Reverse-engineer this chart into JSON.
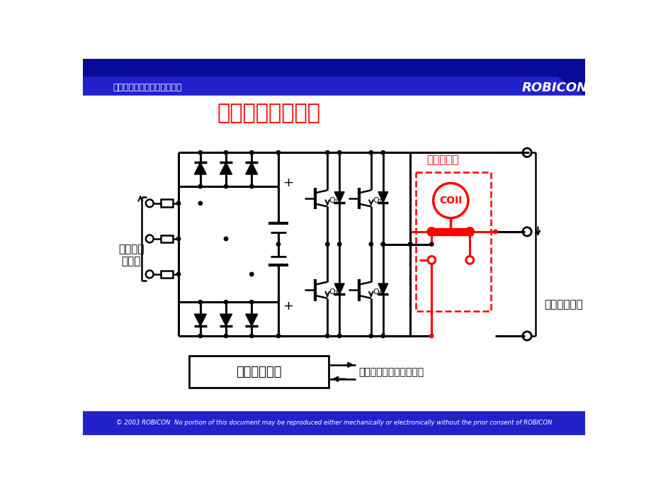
{
  "title": "功率单元旁路电路",
  "header_text": "罗宾康高压变频技术的领导者",
  "header_brand": "ROBICON",
  "footer_text": "© 2003 ROBICON  No portion of this document may be reproduced either mechanically or electronically without the prior consent of ROBICON",
  "label_transformer": "去变压器\n二次侧",
  "label_output": "功率单元输出",
  "label_bypass": "旁路接触器",
  "label_coil": "COII",
  "label_control": "单元控制电路",
  "label_fiber": "光纤通信连接至主连接板",
  "bg_color": "#ffffff",
  "header_bg": "#0000cc",
  "title_color": "#ff0000",
  "circuit_color": "#000000",
  "bypass_color": "#ff0000",
  "header_text_color": "#ffffff"
}
